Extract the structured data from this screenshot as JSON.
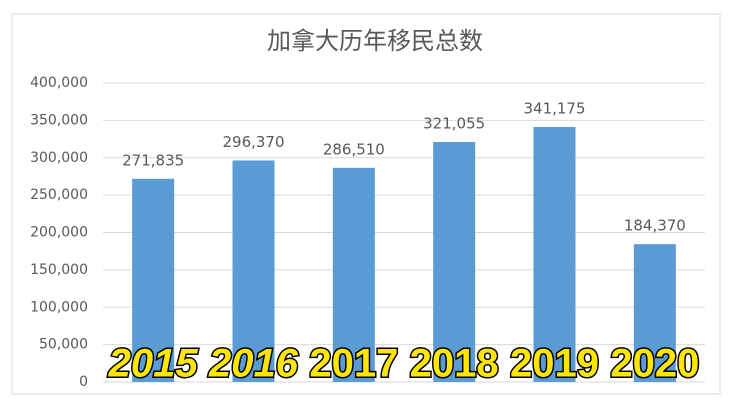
{
  "chart_data": {
    "type": "bar",
    "title": "加拿大历年移民总数",
    "categories": [
      "2015",
      "2016",
      "2017",
      "2018",
      "2019",
      "2020"
    ],
    "values": [
      271835,
      296370,
      286510,
      321055,
      341175,
      184370
    ],
    "value_labels": [
      "271,835",
      "296,370",
      "286,510",
      "321,055",
      "341,175",
      "184,370"
    ],
    "color": "#5b9bd5",
    "ylim": [
      0,
      400000
    ],
    "yticks": [
      0,
      {
        "value": 50000,
        "label": "50,000"
      },
      {
        "value": 100000,
        "label": "100,000"
      },
      {
        "value": 150000,
        "label": "150,000"
      },
      {
        "value": 200000,
        "label": "200,000"
      },
      {
        "value": 250000,
        "label": "250,000"
      },
      {
        "value": 300000,
        "label": "300,000"
      },
      {
        "value": 350000,
        "label": "350,000"
      },
      {
        "value": 400000,
        "label": "400,000"
      }
    ],
    "grid": true
  }
}
